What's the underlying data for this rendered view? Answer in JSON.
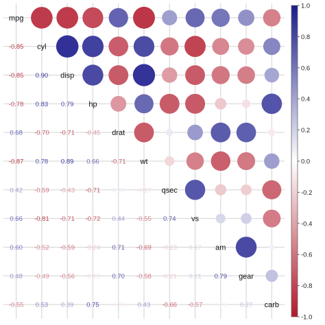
{
  "chart_data": {
    "type": "heatmap",
    "title": "",
    "variables": [
      "mpg",
      "cyl",
      "disp",
      "hp",
      "drat",
      "wt",
      "qsec",
      "vs",
      "am",
      "gear",
      "carb"
    ],
    "matrix": [
      [
        1.0,
        -0.85,
        -0.85,
        -0.78,
        0.68,
        -0.87,
        0.42,
        0.66,
        0.6,
        0.48,
        -0.55
      ],
      [
        -0.85,
        1.0,
        0.9,
        0.83,
        -0.7,
        0.78,
        -0.59,
        -0.81,
        -0.52,
        -0.49,
        0.53
      ],
      [
        -0.85,
        0.9,
        1.0,
        0.79,
        -0.71,
        0.89,
        -0.43,
        -0.71,
        -0.59,
        -0.56,
        0.39
      ],
      [
        -0.78,
        0.83,
        0.79,
        1.0,
        -0.45,
        0.66,
        -0.71,
        -0.72,
        -0.24,
        -0.13,
        0.75
      ],
      [
        0.68,
        -0.7,
        -0.71,
        -0.45,
        1.0,
        -0.71,
        0.09,
        0.44,
        0.71,
        0.7,
        -0.09
      ],
      [
        -0.87,
        0.78,
        0.89,
        0.66,
        -0.71,
        1.0,
        -0.17,
        -0.55,
        -0.69,
        -0.58,
        0.43
      ],
      [
        0.42,
        -0.59,
        -0.43,
        -0.71,
        0.09,
        -0.17,
        1.0,
        0.74,
        -0.23,
        -0.21,
        -0.66
      ],
      [
        0.66,
        -0.81,
        -0.71,
        -0.72,
        0.44,
        -0.55,
        0.74,
        1.0,
        0.17,
        0.21,
        -0.57
      ],
      [
        0.6,
        -0.52,
        -0.59,
        -0.24,
        0.71,
        -0.69,
        -0.23,
        0.17,
        1.0,
        0.79,
        0.06
      ],
      [
        0.48,
        -0.49,
        -0.56,
        -0.13,
        0.7,
        -0.58,
        -0.21,
        0.21,
        0.79,
        1.0,
        0.27
      ],
      [
        -0.55,
        0.53,
        0.39,
        0.75,
        -0.09,
        0.43,
        -0.66,
        -0.57,
        0.06,
        0.27,
        1.0
      ]
    ],
    "lower_labels": [
      [
        "-0.85"
      ],
      [
        "-0.85",
        "0.90"
      ],
      [
        "-0.78",
        "0.83",
        "0.79"
      ],
      [
        "0.68",
        "-0.70",
        "-0.71",
        "-0.45"
      ],
      [
        "-0.87",
        "0.78",
        "0.89",
        "0.66",
        "-0.71"
      ],
      [
        "0.42",
        "-0.59",
        "-0.43",
        "-0.71",
        "0.09",
        "-0.17"
      ],
      [
        "0.66",
        "-0.81",
        "-0.71",
        "-0.72",
        "0.44",
        "-0.55",
        "0.74"
      ],
      [
        "0.60",
        "-0.52",
        "-0.59",
        "-0.24",
        "0.71",
        "-0.69",
        "-0.23",
        "0.17"
      ],
      [
        "0.48",
        "-0.49",
        "-0.56",
        "-0.13",
        "0.70",
        "-0.58",
        "-0.21",
        "0.21",
        "0.79"
      ],
      [
        "-0.55",
        "0.53",
        "0.39",
        "0.75",
        "-0.09",
        "0.43",
        "-0.66",
        "-0.57",
        "0.06",
        "0.27"
      ]
    ],
    "colorbar": {
      "range": [
        -1.0,
        1.0
      ],
      "ticks": [
        "1.0",
        "0.8",
        "0.6",
        "0.4",
        "0.2",
        "0.0",
        "-0.2",
        "-0.4",
        "-0.6",
        "-0.8",
        "-1.0"
      ]
    },
    "colors": {
      "negative": "#b2182b",
      "neutral": "#ffffff",
      "positive": "#1a1a8c"
    },
    "grid": true,
    "legend": "right"
  }
}
